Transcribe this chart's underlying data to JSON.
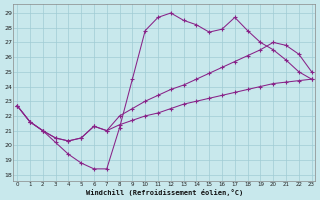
{
  "xlabel": "Windchill (Refroidissement éolien,°C)",
  "bg_color": "#c8e8ec",
  "grid_color": "#a0ccd4",
  "line_color": "#882288",
  "x_ticks": [
    0,
    1,
    2,
    3,
    4,
    5,
    6,
    7,
    8,
    9,
    10,
    11,
    12,
    13,
    14,
    15,
    16,
    17,
    18,
    19,
    20,
    21,
    22,
    23
  ],
  "y_ticks": [
    18,
    19,
    20,
    21,
    22,
    23,
    24,
    25,
    26,
    27,
    28,
    29
  ],
  "ylim": [
    17.6,
    29.6
  ],
  "xlim": [
    -0.3,
    23.3
  ],
  "series": [
    {
      "x": [
        0,
        1,
        2,
        3,
        4,
        5,
        6,
        7,
        8,
        9,
        10,
        11,
        12,
        13,
        14,
        15,
        16,
        17,
        18,
        19,
        20,
        21,
        22,
        23
      ],
      "y": [
        22.7,
        21.6,
        21.0,
        20.2,
        19.4,
        18.8,
        18.4,
        18.4,
        21.2,
        24.5,
        27.8,
        28.7,
        29.0,
        28.5,
        28.2,
        27.7,
        27.9,
        28.7,
        27.8,
        27.0,
        26.5,
        25.8,
        25.0,
        24.5
      ]
    },
    {
      "x": [
        0,
        1,
        2,
        3,
        4,
        5,
        6,
        7,
        8,
        9,
        10,
        11,
        12,
        13,
        14,
        15,
        16,
        17,
        18,
        19,
        20,
        21,
        22,
        23
      ],
      "y": [
        22.7,
        21.6,
        21.0,
        20.5,
        20.3,
        20.5,
        21.3,
        21.0,
        22.0,
        22.5,
        23.0,
        23.4,
        23.8,
        24.1,
        24.5,
        24.9,
        25.3,
        25.7,
        26.1,
        26.5,
        27.0,
        26.8,
        26.2,
        25.0
      ]
    },
    {
      "x": [
        0,
        1,
        2,
        3,
        4,
        5,
        6,
        7,
        8,
        9,
        10,
        11,
        12,
        13,
        14,
        15,
        16,
        17,
        18,
        19,
        20,
        21,
        22,
        23
      ],
      "y": [
        22.7,
        21.6,
        21.0,
        20.5,
        20.3,
        20.5,
        21.3,
        21.0,
        21.4,
        21.7,
        22.0,
        22.2,
        22.5,
        22.8,
        23.0,
        23.2,
        23.4,
        23.6,
        23.8,
        24.0,
        24.2,
        24.3,
        24.4,
        24.5
      ]
    }
  ]
}
